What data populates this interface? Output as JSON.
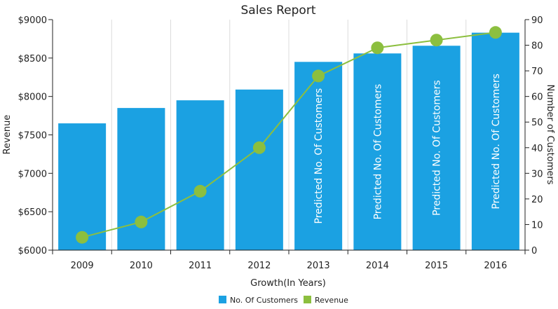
{
  "chart_data": {
    "type": "bar",
    "title": "Sales Report",
    "xlabel": "Growth(In Years)",
    "ylabel": "Revenue",
    "y2label": "Number of Customers",
    "categories": [
      "2009",
      "2010",
      "2011",
      "2012",
      "2013",
      "2014",
      "2015",
      "2016"
    ],
    "ylim": [
      6000,
      9000
    ],
    "y2lim": [
      0,
      90
    ],
    "y_ticks": [
      "$6000",
      "$6500",
      "$7000",
      "$7500",
      "$8000",
      "$8500",
      "$9000"
    ],
    "y2_ticks": [
      "0",
      "10",
      "20",
      "30",
      "40",
      "50",
      "60",
      "70",
      "80",
      "90"
    ],
    "series": [
      {
        "name": "No. Of Customers",
        "type": "bar",
        "axis": "left",
        "color": "#1ba1e2",
        "values": [
          7650,
          7850,
          7950,
          8090,
          8450,
          8560,
          8660,
          8830
        ],
        "data_labels": [
          "",
          "",
          "",
          "",
          "Predicted No. Of Customers",
          "Predicted No. Of Customers",
          "Predicted No. Of Customers",
          "Predicted No. Of Customers"
        ]
      },
      {
        "name": "Revenue",
        "type": "line",
        "axis": "right",
        "color": "#8cbf3f",
        "values": [
          5,
          11,
          23,
          40,
          68,
          79,
          82,
          85
        ]
      }
    ],
    "grid": true,
    "legend": "bottom-center"
  }
}
